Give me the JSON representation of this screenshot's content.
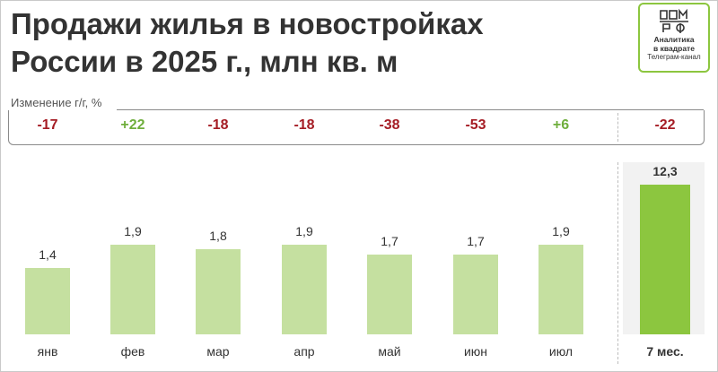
{
  "title_lines": [
    "Продажи жилья в новостройках",
    "России в 2025 г., млн кв. м"
  ],
  "logo": {
    "mark": "ДОМ РФ",
    "line1": "Аналитика",
    "line2": "в квадрате",
    "line3": "Телеграм-канал"
  },
  "change_label": "Изменение г/г, %",
  "colors": {
    "bar": "#c5e0a0",
    "bar_total": "#8cc63f",
    "negative": "#a51c24",
    "positive": "#6fae3c"
  },
  "chart_data": {
    "type": "bar",
    "title": "Продажи жилья в новостройках России в 2025 г., млн кв. м",
    "categories": [
      "янв",
      "фев",
      "мар",
      "апр",
      "май",
      "июн",
      "июл",
      "7 мес."
    ],
    "values": [
      1.4,
      1.9,
      1.8,
      1.9,
      1.7,
      1.7,
      1.9,
      12.3
    ],
    "value_labels": [
      "1,4",
      "1,9",
      "1,8",
      "1,9",
      "1,7",
      "1,7",
      "1,9",
      "12,3"
    ],
    "yoy_change_pct": [
      -17,
      22,
      -18,
      -18,
      -38,
      -53,
      6,
      -22
    ],
    "yoy_change_labels": [
      "-17",
      "+22",
      "-18",
      "-18",
      "-38",
      "-53",
      "+6",
      "-22"
    ],
    "axis_break_before_last": true,
    "grid": false,
    "legend": "none"
  }
}
